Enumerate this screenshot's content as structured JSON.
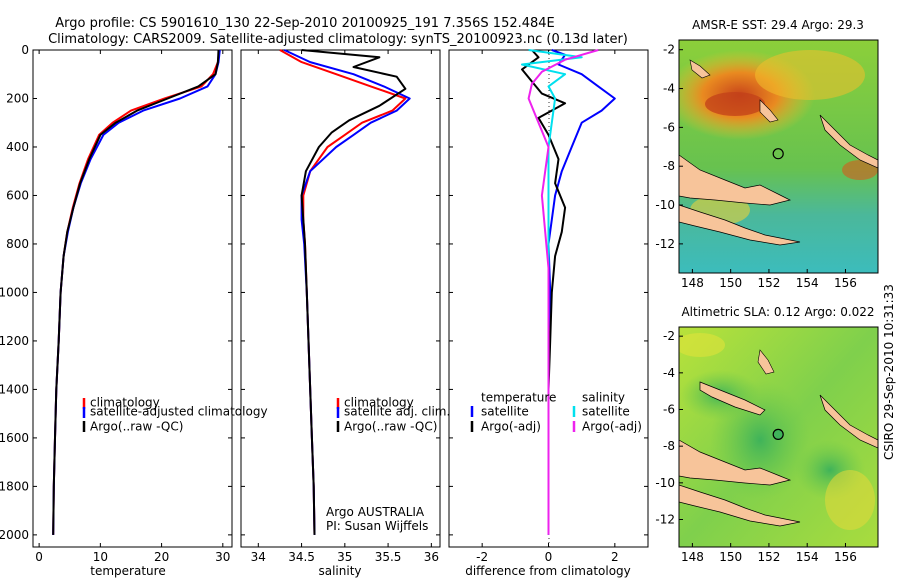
{
  "title": {
    "line1": "Argo profile: CS 5901610_130 22-Sep-2010 20100925_191 7.356S 152.484E",
    "line2": "Climatology: CARS2009. Satellite-adjusted climatology: synTS_20100923.nc (0.13d later)"
  },
  "colors": {
    "climatology": "#ff0000",
    "satellite": "#0000ff",
    "argo": "#000000",
    "sat_sal": "#00e0ee",
    "argo_sal": "#ee22ee",
    "land": "#f7c49a"
  },
  "chart_data": [
    {
      "type": "line",
      "name": "temperature-profile",
      "xlabel": "temperature",
      "ylabel": "",
      "xlim": [
        -1,
        31.5
      ],
      "ylim": [
        2050,
        0
      ],
      "xticks": [
        "0",
        "10",
        "20",
        "30"
      ],
      "yticks": [
        "0",
        "200",
        "400",
        "600",
        "800",
        "1000",
        "1200",
        "1400",
        "1600",
        "1800",
        "2000"
      ],
      "legend": [
        "climatology",
        "satellite-adjusted climatology",
        "Argo(..raw -QC)"
      ],
      "series": [
        {
          "name": "climatology",
          "x": [
            29.4,
            29.2,
            28.4,
            26.5,
            20.5,
            15.0,
            12.0,
            9.8,
            8.0,
            6.6,
            5.5,
            4.6,
            4.0,
            3.5,
            3.2,
            2.8,
            2.6,
            2.4,
            2.3
          ],
          "y": [
            0,
            50,
            100,
            150,
            200,
            250,
            300,
            350,
            450,
            550,
            650,
            750,
            850,
            1000,
            1200,
            1400,
            1600,
            1800,
            2000
          ]
        },
        {
          "name": "satellite-adjusted",
          "x": [
            29.5,
            29.3,
            28.8,
            27.5,
            23.0,
            17.0,
            13.0,
            10.5,
            8.4,
            6.8,
            5.6,
            4.7,
            4.0,
            3.5,
            3.2,
            2.8,
            2.6,
            2.4,
            2.3
          ],
          "y": [
            0,
            50,
            100,
            150,
            200,
            250,
            300,
            350,
            450,
            550,
            650,
            750,
            850,
            1000,
            1200,
            1400,
            1600,
            1800,
            2000
          ]
        },
        {
          "name": "argo",
          "x": [
            29.3,
            29.2,
            28.8,
            26.0,
            21.0,
            16.0,
            12.5,
            10.0,
            8.2,
            6.7,
            5.6,
            4.6,
            4.0,
            3.5,
            3.2,
            2.8,
            2.6,
            2.4,
            2.3
          ],
          "y": [
            0,
            50,
            100,
            150,
            200,
            250,
            300,
            350,
            450,
            550,
            650,
            750,
            850,
            1000,
            1200,
            1400,
            1600,
            1800,
            2000
          ]
        }
      ]
    },
    {
      "type": "line",
      "name": "salinity-profile",
      "xlabel": "salinity",
      "xlim": [
        33.8,
        36.1
      ],
      "ylim": [
        2050,
        0
      ],
      "xticks": [
        "34",
        "34.5",
        "35",
        "35.5",
        "36"
      ],
      "legend": [
        "climatology",
        "satellite adj. clim.",
        "Argo(..raw -QC)"
      ],
      "annotation": [
        "Argo AUSTRALIA",
        "PI: Susan Wijffels"
      ],
      "series": [
        {
          "name": "climatology",
          "x": [
            34.25,
            34.5,
            34.9,
            35.3,
            35.7,
            35.55,
            35.2,
            35.0,
            34.8,
            34.6,
            34.52,
            34.52,
            34.54,
            34.56,
            34.58,
            34.6,
            34.62,
            34.64,
            34.65
          ],
          "y": [
            0,
            50,
            100,
            150,
            200,
            250,
            300,
            350,
            400,
            500,
            600,
            700,
            800,
            1000,
            1200,
            1400,
            1600,
            1800,
            2000
          ]
        },
        {
          "name": "satellite-adjusted",
          "x": [
            34.3,
            34.6,
            35.1,
            35.45,
            35.75,
            35.6,
            35.3,
            35.1,
            34.9,
            34.6,
            34.5,
            34.5,
            34.53,
            34.56,
            34.58,
            34.6,
            34.62,
            34.64,
            34.65
          ],
          "y": [
            0,
            50,
            100,
            150,
            200,
            250,
            300,
            350,
            400,
            500,
            600,
            700,
            800,
            1000,
            1200,
            1400,
            1600,
            1800,
            2000
          ]
        },
        {
          "name": "argo",
          "x": [
            34.5,
            35.4,
            35.1,
            35.6,
            35.7,
            35.4,
            35.05,
            34.85,
            34.7,
            34.55,
            34.5,
            34.52,
            34.54,
            34.56,
            34.58,
            34.6,
            34.62,
            34.64,
            34.65
          ],
          "y": [
            0,
            30,
            70,
            110,
            160,
            230,
            290,
            340,
            400,
            500,
            600,
            700,
            800,
            1000,
            1200,
            1400,
            1600,
            1800,
            2000
          ]
        }
      ]
    },
    {
      "type": "line",
      "name": "difference-profile",
      "xlabel": "difference from climatology",
      "xlim": [
        -3,
        3
      ],
      "ylim": [
        2050,
        0
      ],
      "xticks": [
        "-2",
        "0",
        "2"
      ],
      "legend_left_title": "temperature",
      "legend_left": [
        "satellite",
        "Argo(-adj)"
      ],
      "legend_right_title": "salinity",
      "legend_right": [
        "satellite",
        "Argo(-adj)"
      ],
      "series": [
        {
          "name": "temperature-satellite",
          "x": [
            0.1,
            0.5,
            0.3,
            1.0,
            1.5,
            2.0,
            1.6,
            1.0,
            0.7,
            0.4,
            0.2,
            0.1,
            0.0,
            0.05,
            0.0,
            0.0,
            0.0,
            0.0
          ],
          "y": [
            0,
            20,
            60,
            100,
            150,
            200,
            250,
            300,
            400,
            500,
            600,
            700,
            800,
            1000,
            1200,
            1400,
            1700,
            2000
          ]
        },
        {
          "name": "temperature-argo",
          "x": [
            -0.5,
            -0.3,
            -0.8,
            -0.5,
            -0.2,
            0.5,
            -0.3,
            0.0,
            0.3,
            0.2,
            0.5,
            0.4,
            0.2,
            0.1,
            0.05,
            0.0,
            0.0,
            0.0
          ],
          "y": [
            0,
            30,
            80,
            130,
            180,
            220,
            280,
            350,
            450,
            550,
            650,
            750,
            850,
            1000,
            1200,
            1400,
            1700,
            2000
          ]
        },
        {
          "name": "salinity-satellite",
          "x": [
            -0.6,
            1.0,
            -0.8,
            0.5,
            0.0,
            0.2,
            0.1,
            0.0,
            0.0,
            0.0,
            0.0,
            0.0,
            0.0,
            0.0
          ],
          "y": [
            0,
            30,
            60,
            100,
            150,
            200,
            300,
            400,
            600,
            800,
            1000,
            1300,
            1600,
            2000
          ]
        },
        {
          "name": "salinity-argo",
          "x": [
            1.5,
            0.5,
            -0.2,
            -0.5,
            -0.6,
            -0.3,
            0.0,
            -0.2,
            0.0,
            0.0,
            0.0,
            0.0
          ],
          "y": [
            0,
            40,
            90,
            140,
            200,
            300,
            400,
            600,
            900,
            1200,
            1600,
            2000
          ]
        }
      ]
    },
    {
      "type": "heatmap",
      "name": "sst-map",
      "title": "AMSR-E SST: 29.4 Argo: 29.3",
      "xlim": [
        147.3,
        157.7
      ],
      "ylim": [
        -13.5,
        -1.5
      ],
      "xticks": [
        "148",
        "150",
        "152",
        "154",
        "156"
      ],
      "yticks": [
        "-2",
        "-4",
        "-6",
        "-8",
        "-10",
        "-12"
      ],
      "marker": {
        "lon": 152.484,
        "lat": -7.356
      }
    },
    {
      "type": "heatmap",
      "name": "sla-map",
      "title": "Altimetric SLA: 0.12 Argo: 0.022",
      "xlim": [
        147.3,
        157.7
      ],
      "ylim": [
        -13.5,
        -1.5
      ],
      "xticks": [
        "148",
        "150",
        "152",
        "154",
        "156"
      ],
      "yticks": [
        "-2",
        "-4",
        "-6",
        "-8",
        "-10",
        "-12"
      ],
      "marker": {
        "lon": 152.484,
        "lat": -7.356
      }
    }
  ],
  "side_label": "CSIRO 29-Sep-2010 10:31:33"
}
